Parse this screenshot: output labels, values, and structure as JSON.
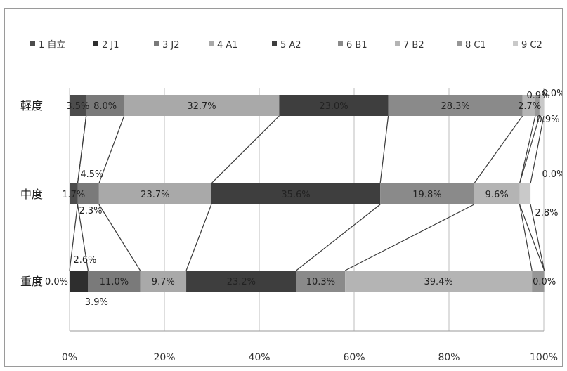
{
  "chart_data": {
    "type": "bar",
    "stacked": true,
    "orientation": "horizontal",
    "normalized": true,
    "categories": [
      "軽度",
      "中度",
      "重度"
    ],
    "series": [
      {
        "name": "1 自立",
        "values": [
          3.5,
          1.7,
          0.0
        ],
        "labels": [
          "3.5%",
          "1.7%",
          "0.0%"
        ],
        "color": "#4c4c4c"
      },
      {
        "name": "2 J1",
        "values": [
          0.0,
          0.0,
          3.9
        ],
        "labels": [
          "",
          "",
          "3.9%"
        ],
        "color": "#2e2e2e"
      },
      {
        "name": "3 J2",
        "values": [
          8.0,
          4.5,
          11.0
        ],
        "labels": [
          "8.0%",
          "4.5%",
          "11.0%"
        ],
        "color": "#7a7a7a"
      },
      {
        "name": "4 A1",
        "values": [
          32.7,
          23.7,
          9.7
        ],
        "labels": [
          "32.7%",
          "23.7%",
          "9.7%"
        ],
        "color": "#a9a9a9"
      },
      {
        "name": "5 A2",
        "values": [
          23.0,
          35.6,
          23.2
        ],
        "labels": [
          "23.0%",
          "35.6%",
          "23.2%"
        ],
        "color": "#3e3e3e"
      },
      {
        "name": "6 B1",
        "values": [
          28.3,
          19.8,
          10.3
        ],
        "labels": [
          "28.3%",
          "19.8%",
          "10.3%"
        ],
        "color": "#8a8a8a"
      },
      {
        "name": "7 B2",
        "values": [
          2.7,
          9.6,
          39.4
        ],
        "labels": [
          "2.7%",
          "9.6%",
          "39.4%"
        ],
        "color": "#b4b4b4"
      },
      {
        "name": "8 C1",
        "values": [
          0.9,
          0.0,
          2.6
        ],
        "labels": [
          "0.9%",
          "0.0%",
          "2.6%"
        ],
        "color": "#969696"
      },
      {
        "name": "9 C2",
        "values": [
          0.9,
          2.3,
          0.0
        ],
        "labels": [
          "0.9%",
          "2.3%",
          "0.0%"
        ],
        "color": "#c9c9c9"
      }
    ],
    "extra_labels": [
      "0.0%",
      "2.8%"
    ],
    "xlim": [
      0,
      100
    ],
    "xticks": [
      "0%",
      "20%",
      "40%",
      "60%",
      "80%",
      "100%"
    ],
    "grid": true,
    "legend_position": "top",
    "series_lines": true
  }
}
